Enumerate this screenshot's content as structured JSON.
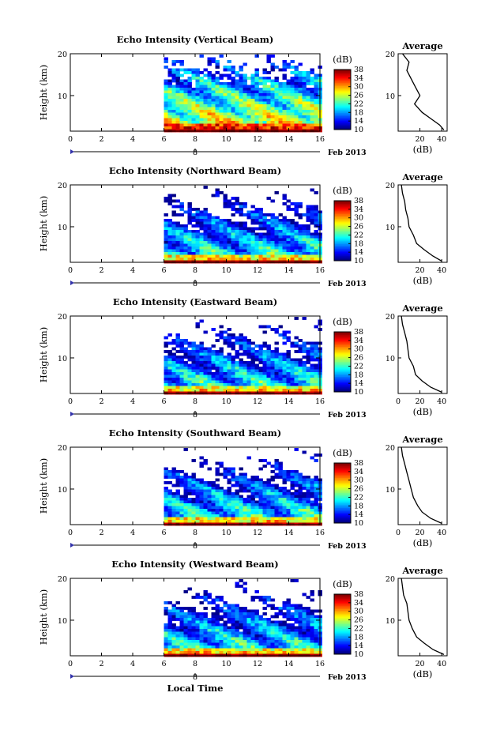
{
  "chart_data": [
    {
      "type": "heatmap",
      "title": "Echo Intensity (Vertical Beam)",
      "ylabel": "Height (km)",
      "xlabel": "",
      "x_ticks": [
        "0",
        "2",
        "4",
        "6",
        "8",
        "10",
        "12",
        "14",
        "16"
      ],
      "y_ticks": [
        "20",
        "10"
      ],
      "xlim": [
        0,
        16
      ],
      "ylim": [
        1.5,
        20
      ],
      "date_label": "Feb 2013",
      "date_marker": "8",
      "data_start_hour": 6,
      "colorbar": {
        "unit": "(dB)",
        "ticks": [
          "38",
          "34",
          "30",
          "26",
          "22",
          "18",
          "14",
          "10"
        ],
        "range": [
          10,
          38
        ]
      },
      "profile": {
        "title": "Average",
        "xlabel": "(dB)",
        "x_ticks": [
          "20",
          "40"
        ],
        "xlim": [
          0,
          45
        ],
        "y_ticks": [
          "20",
          "10"
        ],
        "ylim": [
          1.5,
          20
        ],
        "points": [
          [
            42,
            1.8
          ],
          [
            38,
            3
          ],
          [
            30,
            4.5
          ],
          [
            22,
            6
          ],
          [
            15,
            8
          ],
          [
            20,
            10
          ],
          [
            16,
            12
          ],
          [
            12,
            14
          ],
          [
            8,
            16
          ],
          [
            10,
            18
          ],
          [
            4,
            20
          ]
        ]
      }
    },
    {
      "type": "heatmap",
      "title": "Echo Intensity (Northward Beam)",
      "ylabel": "Height (km)",
      "xlabel": "",
      "x_ticks": [
        "0",
        "2",
        "4",
        "6",
        "8",
        "10",
        "12",
        "14",
        "16"
      ],
      "y_ticks": [
        "20",
        "10"
      ],
      "xlim": [
        0,
        16
      ],
      "ylim": [
        1.5,
        20
      ],
      "date_label": "Feb 2013",
      "date_marker": "8",
      "data_start_hour": 6,
      "colorbar": {
        "unit": "(dB)",
        "ticks": [
          "38",
          "34",
          "30",
          "26",
          "22",
          "18",
          "14",
          "10"
        ],
        "range": [
          10,
          38
        ]
      },
      "profile": {
        "title": "Average",
        "xlabel": "(dB)",
        "x_ticks": [
          "20",
          "40"
        ],
        "xlim": [
          0,
          45
        ],
        "y_ticks": [
          "20",
          "10"
        ],
        "ylim": [
          1.5,
          20
        ],
        "points": [
          [
            40,
            1.8
          ],
          [
            32,
            3
          ],
          [
            24,
            4.5
          ],
          [
            17,
            6
          ],
          [
            14,
            8
          ],
          [
            10,
            10
          ],
          [
            9,
            12
          ],
          [
            7,
            14
          ],
          [
            6,
            16
          ],
          [
            4,
            18
          ],
          [
            3,
            20
          ]
        ]
      }
    },
    {
      "type": "heatmap",
      "title": "Echo Intensity (Eastward Beam)",
      "ylabel": "Height (km)",
      "xlabel": "",
      "x_ticks": [
        "0",
        "2",
        "4",
        "6",
        "8",
        "10",
        "12",
        "14",
        "16"
      ],
      "y_ticks": [
        "20",
        "10"
      ],
      "xlim": [
        0,
        16
      ],
      "ylim": [
        1.5,
        20
      ],
      "date_label": "Feb 2013",
      "date_marker": "8",
      "data_start_hour": 6,
      "colorbar": {
        "unit": "(dB)",
        "ticks": [
          "38",
          "34",
          "30",
          "26",
          "22",
          "18",
          "14",
          "10"
        ],
        "range": [
          10,
          38
        ]
      },
      "profile": {
        "title": "Average",
        "xlabel": "(dB)",
        "x_ticks": [
          "0",
          "20",
          "40"
        ],
        "xlim": [
          0,
          45
        ],
        "y_ticks": [
          "20",
          "10"
        ],
        "ylim": [
          1.5,
          20
        ],
        "points": [
          [
            40,
            1.8
          ],
          [
            30,
            3
          ],
          [
            22,
            4.5
          ],
          [
            16,
            6
          ],
          [
            14,
            8
          ],
          [
            10,
            10
          ],
          [
            9,
            12
          ],
          [
            8,
            14
          ],
          [
            6,
            16
          ],
          [
            4,
            18
          ],
          [
            3,
            20
          ]
        ]
      }
    },
    {
      "type": "heatmap",
      "title": "Echo Intensity (Southward Beam)",
      "ylabel": "Height (km)",
      "xlabel": "",
      "x_ticks": [
        "0",
        "2",
        "4",
        "6",
        "8",
        "10",
        "12",
        "14",
        "16"
      ],
      "y_ticks": [
        "20",
        "10"
      ],
      "xlim": [
        0,
        16
      ],
      "ylim": [
        1.5,
        20
      ],
      "date_label": "Feb 2013",
      "date_marker": "8",
      "data_start_hour": 6,
      "colorbar": {
        "unit": "(dB)",
        "ticks": [
          "38",
          "34",
          "30",
          "26",
          "22",
          "18",
          "14",
          "10"
        ],
        "range": [
          10,
          38
        ]
      },
      "profile": {
        "title": "Average",
        "xlabel": "(dB)",
        "x_ticks": [
          "0",
          "20",
          "40"
        ],
        "xlim": [
          0,
          45
        ],
        "y_ticks": [
          "20",
          "10"
        ],
        "ylim": [
          1.5,
          20
        ],
        "points": [
          [
            40,
            1.8
          ],
          [
            30,
            3
          ],
          [
            22,
            4.5
          ],
          [
            18,
            6
          ],
          [
            14,
            8
          ],
          [
            12,
            10
          ],
          [
            10,
            12
          ],
          [
            8,
            14
          ],
          [
            6,
            16
          ],
          [
            4,
            18
          ],
          [
            3,
            20
          ]
        ]
      }
    },
    {
      "type": "heatmap",
      "title": "Echo Intensity (Westward Beam)",
      "ylabel": "Height (km)",
      "xlabel": "Local Time",
      "x_ticks": [
        "0",
        "2",
        "4",
        "6",
        "8",
        "10",
        "12",
        "14",
        "16"
      ],
      "y_ticks": [
        "20",
        "10"
      ],
      "xlim": [
        0,
        16
      ],
      "ylim": [
        1.5,
        20
      ],
      "date_label": "Feb 2013",
      "date_marker": "8",
      "data_start_hour": 6,
      "colorbar": {
        "unit": "(dB)",
        "ticks": [
          "38",
          "34",
          "30",
          "26",
          "22",
          "18",
          "14",
          "10"
        ],
        "range": [
          10,
          38
        ]
      },
      "profile": {
        "title": "Average",
        "xlabel": "(dB)",
        "x_ticks": [
          "20",
          "40"
        ],
        "xlim": [
          0,
          45
        ],
        "y_ticks": [
          "20",
          "10"
        ],
        "ylim": [
          1.5,
          20
        ],
        "points": [
          [
            42,
            1.8
          ],
          [
            32,
            3
          ],
          [
            24,
            4.5
          ],
          [
            17,
            6
          ],
          [
            13,
            8
          ],
          [
            10,
            10
          ],
          [
            9,
            12
          ],
          [
            8,
            14
          ],
          [
            5,
            16
          ],
          [
            4,
            18
          ],
          [
            3,
            20
          ]
        ]
      }
    }
  ]
}
